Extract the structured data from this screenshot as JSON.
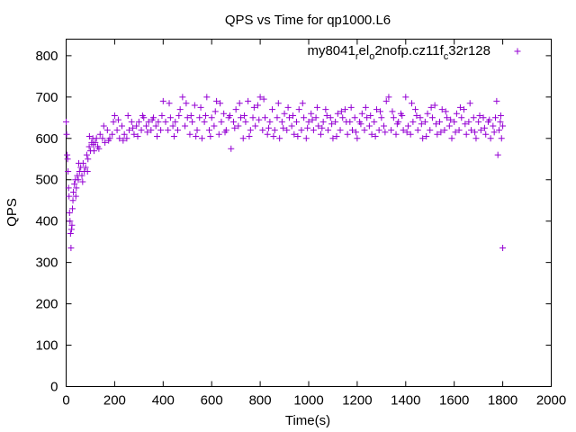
{
  "chart_data": {
    "type": "scatter",
    "title": "QPS vs Time for qp1000.L6",
    "xlabel": "Time(s)",
    "ylabel": "QPS",
    "xlim": [
      0,
      2000
    ],
    "ylim": [
      0,
      840
    ],
    "xticks": [
      0,
      200,
      400,
      600,
      800,
      1000,
      1200,
      1400,
      1600,
      1800,
      2000
    ],
    "yticks": [
      0,
      100,
      200,
      300,
      400,
      500,
      600,
      700,
      800
    ],
    "xtick_labels": [
      "0",
      "200",
      "400",
      "600",
      "800",
      "1000",
      "1200",
      "1400",
      "1600",
      "1800",
      "2000"
    ],
    "ytick_labels": [
      "0",
      "100",
      "200",
      "300",
      "400",
      "500",
      "600",
      "700",
      "800"
    ],
    "grid": false,
    "legend_position": "top-right",
    "legend": {
      "base": "my8041",
      "sub1": "r",
      "mid1": "el",
      "sub2": "o",
      "mid2": "2nofp.cz11f",
      "sub3": "c",
      "tail": "32r128",
      "marker": "+",
      "color": "#9400D3"
    },
    "series": [
      {
        "marker": "+",
        "color": "#9400D3",
        "points": [
          [
            0,
            640
          ],
          [
            2,
            610
          ],
          [
            4,
            560
          ],
          [
            6,
            550
          ],
          [
            8,
            520
          ],
          [
            10,
            480
          ],
          [
            12,
            460
          ],
          [
            14,
            420
          ],
          [
            16,
            400
          ],
          [
            18,
            370
          ],
          [
            20,
            335
          ],
          [
            22,
            380
          ],
          [
            24,
            390
          ],
          [
            26,
            430
          ],
          [
            28,
            450
          ],
          [
            30,
            470
          ],
          [
            34,
            490
          ],
          [
            38,
            500
          ],
          [
            42,
            480
          ],
          [
            46,
            510
          ],
          [
            50,
            500
          ],
          [
            55,
            520
          ],
          [
            60,
            530
          ],
          [
            65,
            510
          ],
          [
            70,
            540
          ],
          [
            75,
            520
          ],
          [
            80,
            530
          ],
          [
            85,
            560
          ],
          [
            90,
            550
          ],
          [
            95,
            580
          ],
          [
            100,
            570
          ],
          [
            105,
            590
          ],
          [
            110,
            600
          ],
          [
            115,
            570
          ],
          [
            120,
            590
          ],
          [
            125,
            600
          ],
          [
            130,
            580
          ],
          [
            140,
            610
          ],
          [
            150,
            600
          ],
          [
            160,
            590
          ],
          [
            170,
            620
          ],
          [
            180,
            600
          ],
          [
            190,
            610
          ],
          [
            200,
            655
          ],
          [
            210,
            620
          ],
          [
            220,
            600
          ],
          [
            230,
            630
          ],
          [
            240,
            610
          ],
          [
            250,
            600
          ],
          [
            260,
            620
          ],
          [
            270,
            640
          ],
          [
            280,
            610
          ],
          [
            290,
            630
          ],
          [
            300,
            640
          ],
          [
            310,
            620
          ],
          [
            320,
            650
          ],
          [
            330,
            630
          ],
          [
            340,
            640
          ],
          [
            350,
            620
          ],
          [
            360,
            650
          ],
          [
            370,
            630
          ],
          [
            380,
            640
          ],
          [
            390,
            620
          ],
          [
            400,
            690
          ],
          [
            410,
            640
          ],
          [
            420,
            620
          ],
          [
            430,
            650
          ],
          [
            440,
            630
          ],
          [
            450,
            640
          ],
          [
            460,
            620
          ],
          [
            470,
            670
          ],
          [
            480,
            700
          ],
          [
            490,
            630
          ],
          [
            500,
            650
          ],
          [
            510,
            610
          ],
          [
            520,
            640
          ],
          [
            530,
            680
          ],
          [
            540,
            620
          ],
          [
            550,
            650
          ],
          [
            560,
            600
          ],
          [
            570,
            640
          ],
          [
            580,
            700
          ],
          [
            590,
            620
          ],
          [
            600,
            650
          ],
          [
            610,
            630
          ],
          [
            620,
            690
          ],
          [
            630,
            610
          ],
          [
            640,
            640
          ],
          [
            650,
            660
          ],
          [
            660,
            620
          ],
          [
            670,
            650
          ],
          [
            680,
            575
          ],
          [
            690,
            640
          ],
          [
            700,
            670
          ],
          [
            710,
            630
          ],
          [
            720,
            650
          ],
          [
            730,
            600
          ],
          [
            740,
            640
          ],
          [
            750,
            690
          ],
          [
            760,
            620
          ],
          [
            770,
            650
          ],
          [
            780,
            630
          ],
          [
            790,
            680
          ],
          [
            800,
            700
          ],
          [
            810,
            620
          ],
          [
            820,
            650
          ],
          [
            830,
            610
          ],
          [
            840,
            640
          ],
          [
            850,
            670
          ],
          [
            860,
            620
          ],
          [
            870,
            650
          ],
          [
            880,
            600
          ],
          [
            890,
            640
          ],
          [
            900,
            660
          ],
          [
            910,
            620
          ],
          [
            920,
            650
          ],
          [
            930,
            630
          ],
          [
            940,
            610
          ],
          [
            950,
            640
          ],
          [
            960,
            670
          ],
          [
            970,
            620
          ],
          [
            980,
            650
          ],
          [
            990,
            600
          ],
          [
            1000,
            640
          ],
          [
            1010,
            660
          ],
          [
            1020,
            620
          ],
          [
            1030,
            650
          ],
          [
            1040,
            630
          ],
          [
            1050,
            610
          ],
          [
            1060,
            640
          ],
          [
            1070,
            670
          ],
          [
            1080,
            620
          ],
          [
            1090,
            650
          ],
          [
            1100,
            600
          ],
          [
            1110,
            640
          ],
          [
            1120,
            660
          ],
          [
            1130,
            620
          ],
          [
            1140,
            650
          ],
          [
            1150,
            670
          ],
          [
            1160,
            610
          ],
          [
            1170,
            640
          ],
          [
            1180,
            620
          ],
          [
            1190,
            650
          ],
          [
            1200,
            600
          ],
          [
            1210,
            640
          ],
          [
            1220,
            660
          ],
          [
            1230,
            620
          ],
          [
            1240,
            650
          ],
          [
            1250,
            630
          ],
          [
            1260,
            610
          ],
          [
            1270,
            640
          ],
          [
            1280,
            670
          ],
          [
            1290,
            620
          ],
          [
            1300,
            650
          ],
          [
            1310,
            630
          ],
          [
            1320,
            690
          ],
          [
            1330,
            700
          ],
          [
            1340,
            620
          ],
          [
            1350,
            650
          ],
          [
            1360,
            610
          ],
          [
            1370,
            640
          ],
          [
            1380,
            660
          ],
          [
            1390,
            620
          ],
          [
            1400,
            700
          ],
          [
            1410,
            630
          ],
          [
            1420,
            610
          ],
          [
            1430,
            640
          ],
          [
            1440,
            670
          ],
          [
            1450,
            620
          ],
          [
            1460,
            650
          ],
          [
            1470,
            600
          ],
          [
            1480,
            640
          ],
          [
            1490,
            660
          ],
          [
            1500,
            620
          ],
          [
            1510,
            650
          ],
          [
            1520,
            680
          ],
          [
            1530,
            610
          ],
          [
            1540,
            640
          ],
          [
            1550,
            670
          ],
          [
            1560,
            620
          ],
          [
            1570,
            650
          ],
          [
            1580,
            630
          ],
          [
            1590,
            600
          ],
          [
            1600,
            640
          ],
          [
            1610,
            660
          ],
          [
            1620,
            620
          ],
          [
            1630,
            650
          ],
          [
            1640,
            670
          ],
          [
            1650,
            610
          ],
          [
            1660,
            640
          ],
          [
            1670,
            620
          ],
          [
            1680,
            650
          ],
          [
            1690,
            600
          ],
          [
            1700,
            640
          ],
          [
            1710,
            620
          ],
          [
            1720,
            650
          ],
          [
            1730,
            610
          ],
          [
            1740,
            640
          ],
          [
            1750,
            600
          ],
          [
            1760,
            630
          ],
          [
            1770,
            650
          ],
          [
            1775,
            690
          ],
          [
            1780,
            560
          ],
          [
            1785,
            620
          ],
          [
            1790,
            640
          ],
          [
            1795,
            600
          ],
          [
            1800,
            335
          ],
          [
            1800,
            630
          ],
          [
            40,
            460
          ],
          [
            52,
            540
          ],
          [
            68,
            495
          ],
          [
            88,
            520
          ],
          [
            96,
            605
          ],
          [
            112,
            585
          ],
          [
            135,
            575
          ],
          [
            155,
            630
          ],
          [
            175,
            595
          ],
          [
            195,
            640
          ],
          [
            215,
            645
          ],
          [
            235,
            595
          ],
          [
            255,
            655
          ],
          [
            275,
            625
          ],
          [
            295,
            605
          ],
          [
            315,
            655
          ],
          [
            335,
            615
          ],
          [
            355,
            645
          ],
          [
            375,
            605
          ],
          [
            395,
            655
          ],
          [
            425,
            685
          ],
          [
            445,
            605
          ],
          [
            465,
            655
          ],
          [
            495,
            685
          ],
          [
            515,
            655
          ],
          [
            535,
            605
          ],
          [
            555,
            675
          ],
          [
            575,
            655
          ],
          [
            595,
            605
          ],
          [
            615,
            665
          ],
          [
            635,
            685
          ],
          [
            655,
            615
          ],
          [
            675,
            655
          ],
          [
            695,
            625
          ],
          [
            715,
            685
          ],
          [
            735,
            655
          ],
          [
            755,
            605
          ],
          [
            775,
            675
          ],
          [
            795,
            645
          ],
          [
            815,
            695
          ],
          [
            835,
            625
          ],
          [
            855,
            605
          ],
          [
            875,
            685
          ],
          [
            895,
            625
          ],
          [
            915,
            675
          ],
          [
            935,
            655
          ],
          [
            955,
            605
          ],
          [
            975,
            685
          ],
          [
            995,
            625
          ],
          [
            1015,
            645
          ],
          [
            1035,
            675
          ],
          [
            1055,
            625
          ],
          [
            1075,
            655
          ],
          [
            1095,
            635
          ],
          [
            1115,
            605
          ],
          [
            1135,
            665
          ],
          [
            1155,
            640
          ],
          [
            1175,
            675
          ],
          [
            1195,
            615
          ],
          [
            1215,
            635
          ],
          [
            1235,
            675
          ],
          [
            1255,
            655
          ],
          [
            1275,
            605
          ],
          [
            1295,
            665
          ],
          [
            1315,
            615
          ],
          [
            1345,
            665
          ],
          [
            1365,
            635
          ],
          [
            1385,
            655
          ],
          [
            1405,
            615
          ],
          [
            1425,
            685
          ],
          [
            1445,
            655
          ],
          [
            1465,
            635
          ],
          [
            1485,
            605
          ],
          [
            1505,
            675
          ],
          [
            1525,
            635
          ],
          [
            1545,
            615
          ],
          [
            1565,
            665
          ],
          [
            1585,
            645
          ],
          [
            1605,
            615
          ],
          [
            1625,
            675
          ],
          [
            1645,
            635
          ],
          [
            1665,
            685
          ],
          [
            1685,
            615
          ],
          [
            1705,
            655
          ],
          [
            1725,
            625
          ],
          [
            1745,
            645
          ],
          [
            1765,
            615
          ],
          [
            1792,
            655
          ]
        ]
      }
    ]
  }
}
